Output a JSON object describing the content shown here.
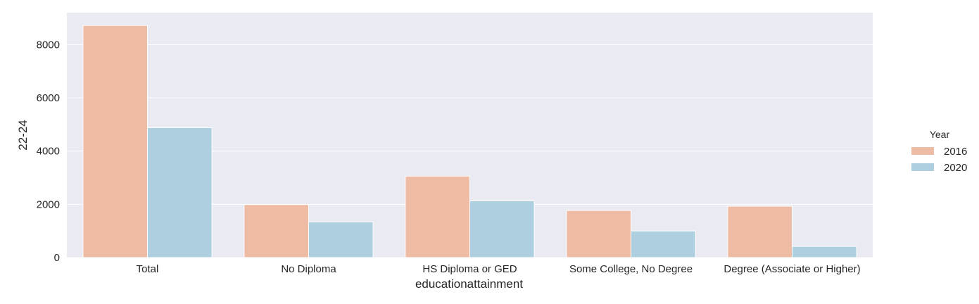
{
  "chart_data": {
    "type": "bar",
    "title": "",
    "xlabel": "educationattainment",
    "ylabel": "22-24",
    "categories": [
      "Total",
      "No Diploma",
      "HS Diploma or GED",
      "Some College, No Degree",
      "Degree (Associate or Higher)"
    ],
    "series": [
      {
        "name": "2016",
        "color": "#eebba5",
        "values": [
          8720,
          1990,
          3060,
          1770,
          1930
        ]
      },
      {
        "name": "2020",
        "color": "#aecfe0",
        "values": [
          4880,
          1340,
          2130,
          1000,
          420
        ]
      }
    ],
    "ylim": [
      0,
      9200
    ],
    "yticks": [
      0,
      2000,
      4000,
      6000,
      8000
    ],
    "grid": true,
    "background": "#eaeaf2",
    "legend": {
      "title": "Year",
      "placement": "right"
    }
  }
}
